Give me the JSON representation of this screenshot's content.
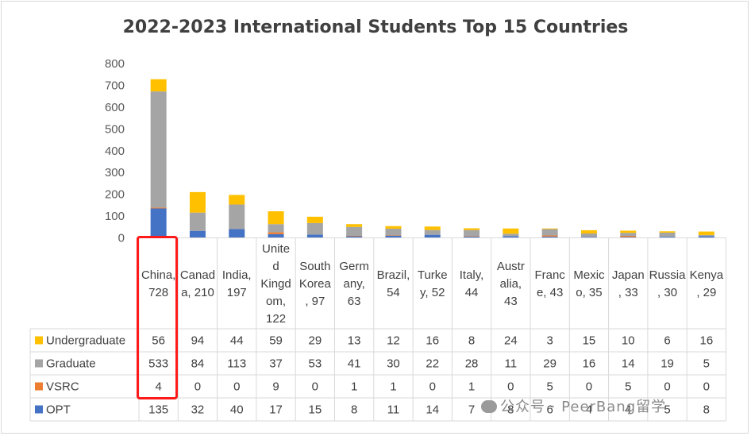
{
  "chart_data": {
    "type": "bar",
    "stacked": true,
    "title": "2022-2023 International Students Top 15 Countries",
    "ylim": [
      0,
      800
    ],
    "yticks": [
      0,
      100,
      200,
      300,
      400,
      500,
      600,
      700,
      800
    ],
    "grid": false,
    "legend": "data-table",
    "categories": [
      "China, 728",
      "Canada, 210",
      "India, 197",
      "United Kingdom, 122",
      "South Korea, 97",
      "Germany, 63",
      "Brazil, 54",
      "Turkey, 52",
      "Italy, 44",
      "Australia, 43",
      "France, 43",
      "Mexico, 35",
      "Japan, 33",
      "Russia, 30",
      "Kenya, 29"
    ],
    "category_lines": [
      [
        "China,",
        "728"
      ],
      [
        "Canad",
        "a, 210"
      ],
      [
        "India,",
        "197"
      ],
      [
        "Unite",
        "d",
        "Kingd",
        "om,",
        "122"
      ],
      [
        "South",
        "Korea",
        ", 97"
      ],
      [
        "Germ",
        "any,",
        "63"
      ],
      [
        "Brazil,",
        "54"
      ],
      [
        "Turke",
        "y, 52"
      ],
      [
        "Italy,",
        "44"
      ],
      [
        "Austr",
        "alia,",
        "43"
      ],
      [
        "Franc",
        "e, 43"
      ],
      [
        "Mexic",
        "o, 35"
      ],
      [
        "Japan",
        ", 33"
      ],
      [
        "Russia",
        ", 30"
      ],
      [
        "Kenya",
        ", 29"
      ]
    ],
    "series": [
      {
        "name": "Undergraduate",
        "color": "#ffc000",
        "values": [
          56,
          94,
          44,
          59,
          29,
          13,
          12,
          16,
          8,
          24,
          3,
          15,
          10,
          6,
          16
        ]
      },
      {
        "name": "Graduate",
        "color": "#a5a5a5",
        "values": [
          533,
          84,
          113,
          37,
          53,
          41,
          30,
          22,
          28,
          11,
          29,
          16,
          14,
          19,
          5
        ]
      },
      {
        "name": "VSRC",
        "color": "#ed7d31",
        "values": [
          4,
          0,
          0,
          9,
          0,
          1,
          1,
          0,
          1,
          0,
          5,
          0,
          5,
          0,
          0
        ]
      },
      {
        "name": "OPT",
        "color": "#4472c4",
        "values": [
          135,
          32,
          40,
          17,
          15,
          8,
          11,
          14,
          7,
          8,
          6,
          4,
          4,
          5,
          8
        ]
      }
    ],
    "stack_order_bottom_to_top": [
      "OPT",
      "VSRC",
      "Graduate",
      "Undergraduate"
    ],
    "highlight": {
      "category": "China, 728",
      "color": "#ff1a1a"
    }
  },
  "watermark": "公众号 · PeerBang留学"
}
